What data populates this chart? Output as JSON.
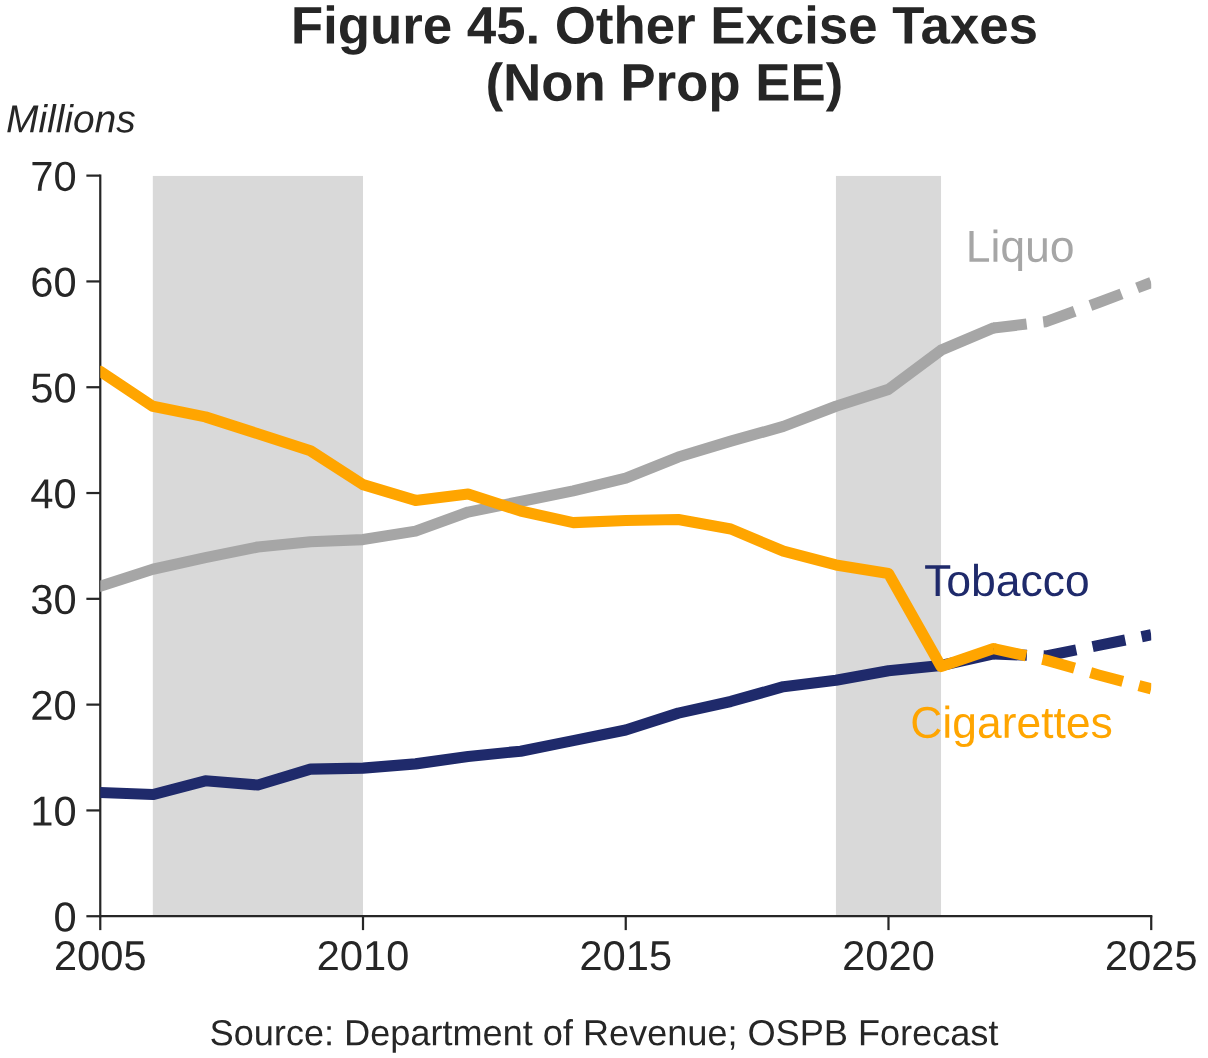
{
  "chart_data": {
    "type": "line",
    "title": "Figure 45. Other Excise Taxes\n(Non Prop EE)",
    "ylabel": "Millions",
    "x": [
      2005,
      2006,
      2007,
      2008,
      2009,
      2010,
      2011,
      2012,
      2013,
      2014,
      2015,
      2016,
      2017,
      2018,
      2019,
      2020,
      2021,
      2022
    ],
    "series": [
      {
        "name": "Liquo",
        "color": "#a6a6a6",
        "values": [
          31.2,
          32.8,
          33.9,
          34.9,
          35.4,
          35.6,
          36.4,
          38.2,
          39.2,
          40.2,
          41.4,
          43.4,
          44.9,
          46.3,
          48.2,
          49.8,
          53.5,
          55.6
        ]
      },
      {
        "name": "Tobacco",
        "color": "#1f2a6b",
        "values": [
          11.7,
          11.5,
          12.8,
          12.4,
          13.9,
          14.0,
          14.4,
          15.1,
          15.6,
          16.6,
          17.6,
          19.2,
          20.3,
          21.7,
          22.3,
          23.2,
          23.7,
          24.8
        ]
      },
      {
        "name": "Cigarettes",
        "color": "#ffa500",
        "values": [
          51.5,
          48.2,
          47.2,
          45.6,
          44.0,
          40.8,
          39.3,
          39.9,
          38.3,
          37.2,
          37.4,
          37.5,
          36.6,
          34.5,
          33.2,
          32.4,
          23.6,
          25.3
        ]
      },
      {
        "color": "#a6a6a6",
        "line_style": "dashed",
        "x": [
          2022,
          2023,
          2024,
          2025
        ],
        "values": [
          55.6,
          56.2,
          58.0,
          59.9
        ]
      },
      {
        "color": "#1f2a6b",
        "line_style": "dashed",
        "x": [
          2022,
          2023,
          2024,
          2025
        ],
        "values": [
          24.8,
          24.6,
          25.6,
          26.6
        ]
      },
      {
        "color": "#ffa500",
        "line_style": "dashed",
        "x": [
          2022,
          2023,
          2024,
          2025
        ],
        "values": [
          25.3,
          24.2,
          22.8,
          21.5
        ]
      }
    ],
    "bands": [
      {
        "axis": "x",
        "from": 2006,
        "to": 2010,
        "color": "#d9d9d9"
      },
      {
        "axis": "x",
        "from": 2019,
        "to": 2021,
        "color": "#d9d9d9"
      }
    ],
    "xlim": [
      2005,
      2025
    ],
    "xticks": [
      2005,
      2010,
      2015,
      2020,
      2025
    ],
    "ylim": [
      0,
      70
    ],
    "yticks": [
      0,
      10,
      20,
      30,
      40,
      50,
      60,
      70
    ],
    "grid": false,
    "legend": false,
    "annotations": [
      "Source: Department of Revenue; OSPB Forecast"
    ]
  }
}
